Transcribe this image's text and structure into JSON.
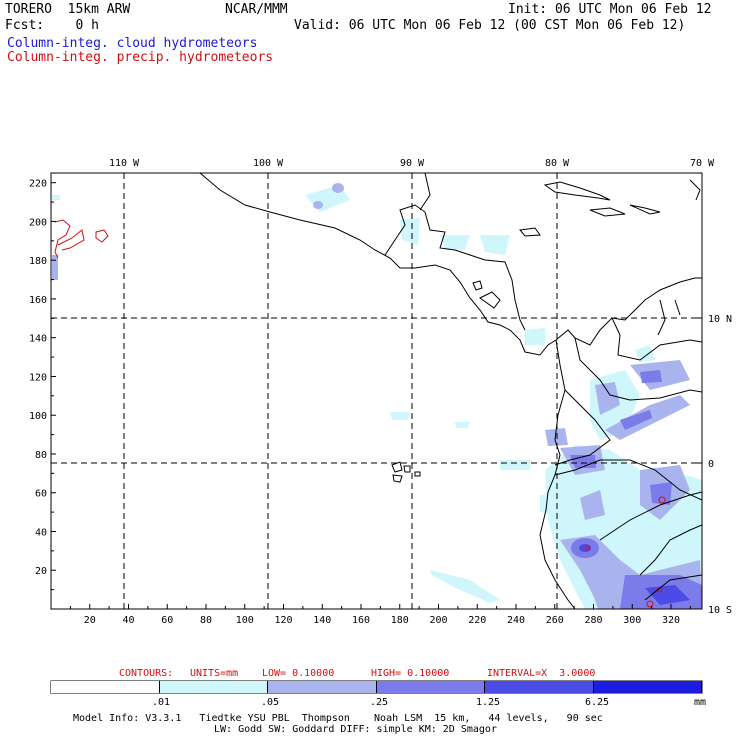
{
  "header": {
    "model": "TORERO  15km ARW",
    "org": "NCAR/MMM",
    "init": "Init: 06 UTC Mon 06 Feb 12",
    "fcst": "Fcst:    0 h",
    "valid": "Valid: 06 UTC Mon 06 Feb 12 (00 CST Mon 06 Feb 12)",
    "field1": "Column-integ. cloud hydrometeors",
    "field2": "Column-integ. precip. hydrometeors",
    "field1_color": "#1a1ad0",
    "field2_color": "#d01010"
  },
  "map": {
    "x_ticks": [
      "20",
      "40",
      "60",
      "80",
      "100",
      "120",
      "140",
      "160",
      "180",
      "200",
      "220",
      "240",
      "260",
      "280",
      "300",
      "320"
    ],
    "y_ticks": [
      "20",
      "40",
      "60",
      "80",
      "100",
      "120",
      "140",
      "160",
      "180",
      "200",
      "220"
    ],
    "lon_labels": [
      "110 W",
      "100 W",
      "90 W",
      "80 W",
      "70 W"
    ],
    "lat_labels": [
      "10 N",
      "0",
      "10 S"
    ]
  },
  "contour_info": {
    "contours": "CONTOURS:",
    "units": "UNITS=mm",
    "low": "LOW= 0.10000",
    "high": "HIGH= 0.10000",
    "interval": "INTERVAL=X  3.0000",
    "color": "#d01010"
  },
  "colorbar": {
    "labels": [
      ".01",
      ".05",
      ".25",
      "1.25",
      "6.25"
    ],
    "unit": "mm",
    "colors": [
      "#ffffff",
      "#cff6fa",
      "#a9b4ee",
      "#7b7bea",
      "#4b4be6",
      "#1c1ce0"
    ]
  },
  "footer": {
    "line1": "Model Info: V3.3.1   Tiedtke YSU PBL  Thompson    Noah LSM  15 km,   44 levels,   90 sec",
    "line2": "LW: Godd SW: Goddard DIFF: simple KM: 2D Smagor"
  }
}
